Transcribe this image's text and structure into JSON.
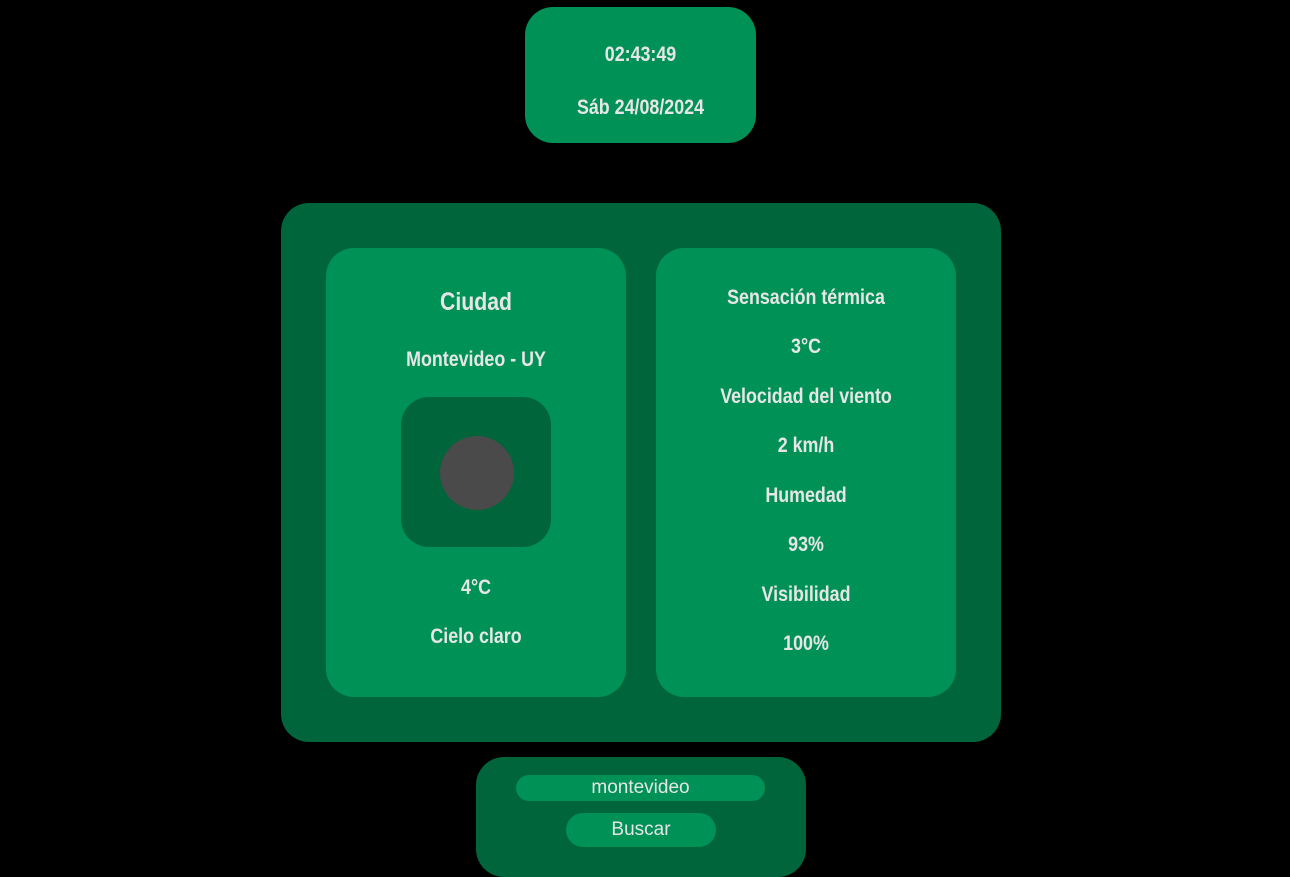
{
  "clock": {
    "time": "02:43:49",
    "date": "Sáb 24/08/2024"
  },
  "weather": {
    "city_heading": "Ciudad",
    "city": "Montevideo - UY",
    "icon": "weather-icon",
    "temperature": "4°C",
    "description": "Cielo claro"
  },
  "details": {
    "feels_like_label": "Sensación térmica",
    "feels_like_value": "3°C",
    "wind_label": "Velocidad del viento",
    "wind_value": "2 km/h",
    "humidity_label": "Humedad",
    "humidity_value": "93%",
    "visibility_label": "Visibilidad",
    "visibility_value": "100%"
  },
  "search": {
    "input_value": "montevideo",
    "button_label": "Buscar"
  },
  "colors": {
    "background": "#000000",
    "panel_dark": "#00653b",
    "panel_light": "#009156",
    "text": "#e6e6e6",
    "icon_placeholder": "#4a4a4a"
  }
}
